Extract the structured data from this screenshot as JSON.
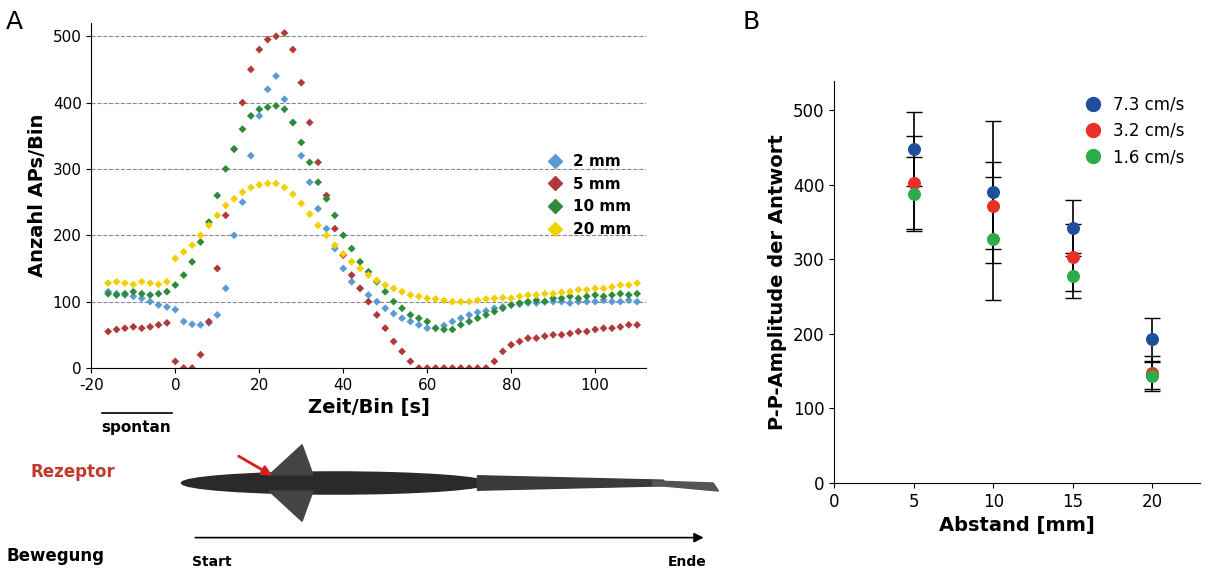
{
  "chart_data": [
    {
      "type": "scatter",
      "panel": "A",
      "x_label": "Zeit/Bin [s]",
      "y_label": "Anzahl APs/Bin",
      "xlim": [
        -20,
        112
      ],
      "xticks": [
        -20,
        0,
        20,
        40,
        60,
        80,
        100
      ],
      "ylim": [
        0,
        520
      ],
      "yticks": [
        0,
        100,
        200,
        300,
        400,
        500
      ],
      "grid": "y",
      "legend": "center right",
      "marker": "D",
      "annotations": [
        "spontan",
        "Rezeptor",
        "Bewegung",
        "Start",
        "Ende"
      ],
      "x": [
        -16,
        -14,
        -12,
        -10,
        -8,
        -6,
        -4,
        -2,
        0,
        2,
        4,
        6,
        8,
        10,
        12,
        14,
        16,
        18,
        20,
        22,
        24,
        26,
        28,
        30,
        32,
        34,
        36,
        38,
        40,
        42,
        44,
        46,
        48,
        50,
        52,
        54,
        56,
        58,
        60,
        62,
        64,
        66,
        68,
        70,
        72,
        74,
        76,
        78,
        80,
        82,
        84,
        86,
        88,
        90,
        92,
        94,
        96,
        98,
        100,
        102,
        104,
        106,
        108,
        110
      ],
      "series": [
        {
          "name": "2 mm",
          "color": "#5b9bd5",
          "values": [
            115,
            112,
            110,
            108,
            105,
            100,
            95,
            92,
            88,
            70,
            66,
            65,
            68,
            80,
            120,
            200,
            250,
            320,
            380,
            420,
            440,
            405,
            370,
            320,
            280,
            240,
            210,
            180,
            150,
            130,
            120,
            110,
            100,
            90,
            82,
            75,
            70,
            65,
            60,
            60,
            64,
            70,
            75,
            80,
            84,
            86,
            90,
            92,
            95,
            96,
            98,
            98,
            100,
            100,
            100,
            98,
            100,
            100,
            100,
            102,
            100,
            100,
            102,
            100
          ]
        },
        {
          "name": "5 mm",
          "color": "#b03a3a",
          "values": [
            55,
            58,
            60,
            62,
            60,
            62,
            65,
            68,
            10,
            0,
            0,
            20,
            70,
            150,
            230,
            330,
            400,
            450,
            480,
            495,
            500,
            505,
            480,
            430,
            370,
            310,
            260,
            210,
            170,
            140,
            120,
            100,
            80,
            60,
            40,
            25,
            10,
            0,
            0,
            0,
            0,
            0,
            0,
            0,
            0,
            0,
            10,
            25,
            35,
            40,
            45,
            45,
            48,
            50,
            50,
            52,
            55,
            55,
            58,
            60,
            60,
            62,
            65,
            65
          ]
        },
        {
          "name": "10 mm",
          "color": "#2e8b3a",
          "values": [
            112,
            110,
            112,
            115,
            112,
            110,
            112,
            115,
            125,
            140,
            160,
            190,
            220,
            260,
            300,
            330,
            360,
            380,
            390,
            393,
            395,
            390,
            370,
            340,
            310,
            280,
            255,
            230,
            200,
            180,
            160,
            145,
            130,
            115,
            100,
            90,
            80,
            75,
            70,
            60,
            58,
            58,
            65,
            70,
            75,
            80,
            85,
            90,
            95,
            98,
            100,
            102,
            100,
            105,
            105,
            108,
            105,
            108,
            110,
            108,
            110,
            112,
            110,
            112
          ]
        },
        {
          "name": "20 mm",
          "color": "#f2d000",
          "values": [
            128,
            130,
            128,
            126,
            130,
            128,
            126,
            130,
            165,
            175,
            185,
            200,
            215,
            230,
            245,
            255,
            265,
            272,
            276,
            278,
            278,
            272,
            262,
            248,
            232,
            215,
            200,
            185,
            172,
            160,
            150,
            140,
            132,
            125,
            120,
            115,
            110,
            108,
            105,
            104,
            102,
            100,
            100,
            100,
            102,
            104,
            105,
            106,
            105,
            108,
            110,
            110,
            112,
            112,
            114,
            115,
            118,
            118,
            120,
            120,
            122,
            125,
            125,
            128
          ]
        }
      ]
    },
    {
      "type": "scatter",
      "panel": "B",
      "x_label": "Abstand [mm]",
      "y_label": "P-P-Amplitude der Antwort",
      "xlim": [
        0,
        23
      ],
      "xticks": [
        0,
        5,
        10,
        15,
        20
      ],
      "ylim": [
        0,
        540
      ],
      "yticks": [
        0,
        100,
        200,
        300,
        400,
        500
      ],
      "legend": "upper right",
      "marker": "o",
      "x": [
        5,
        10,
        15,
        20
      ],
      "series": [
        {
          "name": "7.3 cm/s",
          "color": "#1f4e9c",
          "values": [
            448,
            390,
            342,
            193
          ],
          "errors": [
            50,
            95,
            38,
            29
          ]
        },
        {
          "name": "3.2 cm/s",
          "color": "#e8302a",
          "values": [
            403,
            372,
            303,
            148
          ],
          "errors": [
            62,
            58,
            45,
            22
          ]
        },
        {
          "name": "1.6 cm/s",
          "color": "#2eab4a",
          "values": [
            388,
            328,
            278,
            143
          ],
          "errors": [
            50,
            83,
            30,
            20
          ]
        }
      ]
    }
  ]
}
